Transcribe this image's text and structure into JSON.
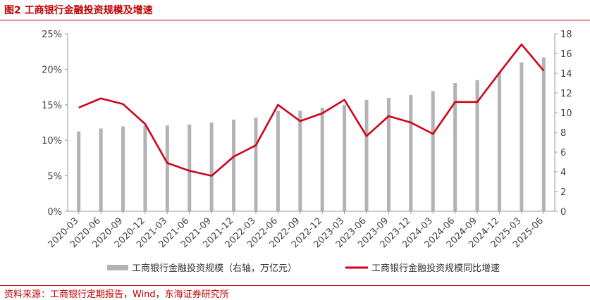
{
  "figure": {
    "title": "图2  工商银行金融投资规模及增速",
    "source": "资料来源：工商银行定期报告，Wind，东海证券研究所"
  },
  "chart_data": {
    "type": "bar",
    "categories": [
      "2020-03",
      "2020-06",
      "2020-09",
      "2020-12",
      "2021-03",
      "2021-06",
      "2021-09",
      "2021-12",
      "2022-03",
      "2022-06",
      "2022-09",
      "2022-12",
      "2023-03",
      "2023-06",
      "2023-09",
      "2023-12",
      "2024-03",
      "2024-06",
      "2024-09",
      "2024-12",
      "2025-03",
      "2025-06"
    ],
    "series": [
      {
        "name": "工商银行金融投资规模（右轴，万亿元）",
        "type": "bar",
        "axis": "right",
        "color": "#b3b3b3",
        "values": [
          8.1,
          8.4,
          8.6,
          8.7,
          8.7,
          8.8,
          9.0,
          9.3,
          9.5,
          10.2,
          10.2,
          10.5,
          10.8,
          11.3,
          11.5,
          11.8,
          12.2,
          13.0,
          13.3,
          14.1,
          15.1,
          15.6
        ]
      },
      {
        "name": "工商银行金融投资规模同比增速",
        "type": "line",
        "axis": "left",
        "color": "#d0021b",
        "values": [
          14.6,
          15.9,
          15.1,
          12.3,
          6.8,
          5.7,
          5.0,
          7.7,
          9.3,
          15.0,
          12.7,
          13.8,
          15.7,
          10.6,
          13.4,
          12.5,
          10.9,
          15.4,
          15.4,
          19.5,
          23.5,
          19.8
        ]
      }
    ],
    "y_left": {
      "ticks": [
        "0%",
        "5%",
        "10%",
        "15%",
        "20%",
        "25%"
      ],
      "min": 0,
      "max": 25
    },
    "y_right": {
      "ticks": [
        "0",
        "2",
        "4",
        "6",
        "8",
        "10",
        "12",
        "14",
        "16",
        "18"
      ],
      "min": 0,
      "max": 18
    },
    "legend": "bottom-center",
    "grid": false
  }
}
